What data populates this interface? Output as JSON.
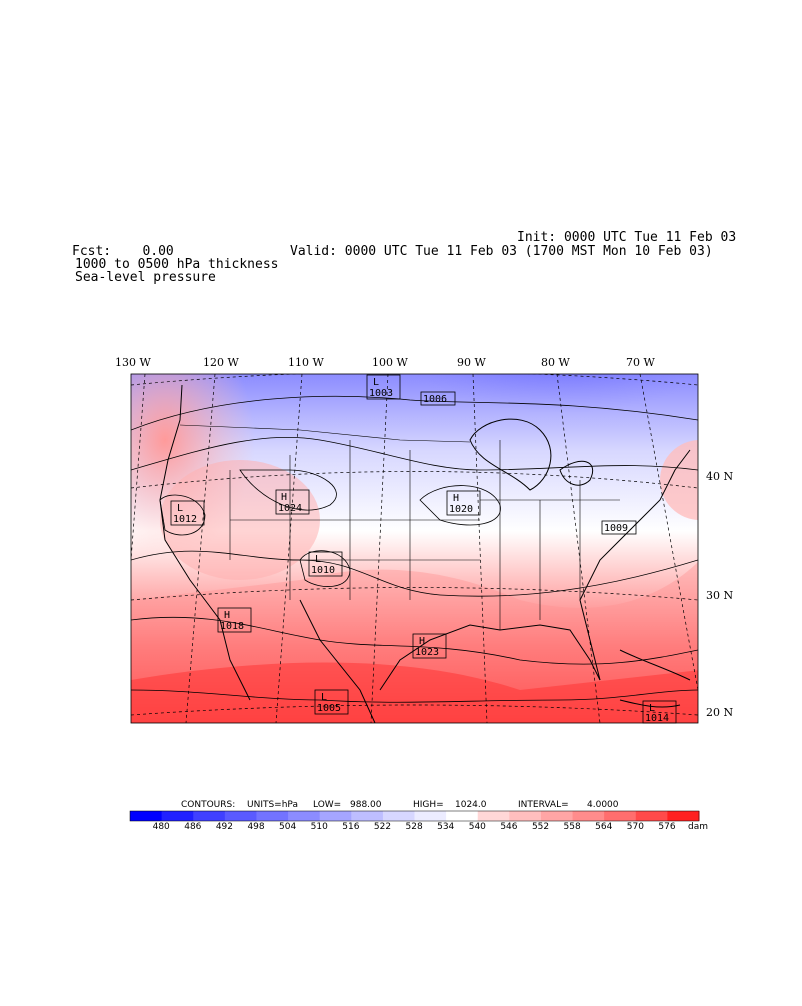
{
  "header": {
    "init": "Init: 0000 UTC Tue 11 Feb 03",
    "fcst": "Fcst:    0.00",
    "valid": "Valid: 0000 UTC Tue 11 Feb 03 (1700 MST Mon 10 Feb 03)",
    "field1": "1000 to 0500 hPa thickness",
    "field2": "Sea-level pressure"
  },
  "longitude_labels": [
    "130 W",
    "120 W",
    "110 W",
    "100 W",
    "90 W",
    "80 W",
    "70 W"
  ],
  "latitude_labels": [
    "40 N",
    "30 N",
    "20 N"
  ],
  "pressure_centers": [
    {
      "type": "L",
      "value": "1003"
    },
    {
      "type": "",
      "value": "1006"
    },
    {
      "type": "L",
      "value": "1012"
    },
    {
      "type": "H",
      "value": "1024"
    },
    {
      "type": "H",
      "value": "1020"
    },
    {
      "type": "",
      "value": "1009"
    },
    {
      "type": "L",
      "value": "1010"
    },
    {
      "type": "H",
      "value": "1018"
    },
    {
      "type": "H",
      "value": "1023"
    },
    {
      "type": "L",
      "value": "1005"
    },
    {
      "type": "L",
      "value": "1014"
    }
  ],
  "legend": {
    "contours_label": "CONTOURS:",
    "units_label": "UNITS=hPa",
    "low_label": "LOW=",
    "low_value": "988.00",
    "high_label": "HIGH=",
    "high_value": "1024.0",
    "interval_label": "INTERVAL=",
    "interval_value": "4.0000",
    "unit": "dam",
    "ticks": [
      "480",
      "486",
      "492",
      "498",
      "504",
      "510",
      "516",
      "522",
      "528",
      "534",
      "540",
      "546",
      "552",
      "558",
      "564",
      "570",
      "576"
    ],
    "colors": [
      "#0000ff",
      "#2020ff",
      "#4040ff",
      "#5a5aff",
      "#7373ff",
      "#8c8cff",
      "#a5a5ff",
      "#bebeff",
      "#d7d7ff",
      "#ececff",
      "#ffffff",
      "#ffd7d7",
      "#ffbebe",
      "#ffa5a5",
      "#ff8c8c",
      "#ff6e6e",
      "#ff4a4a",
      "#ff2020"
    ]
  }
}
